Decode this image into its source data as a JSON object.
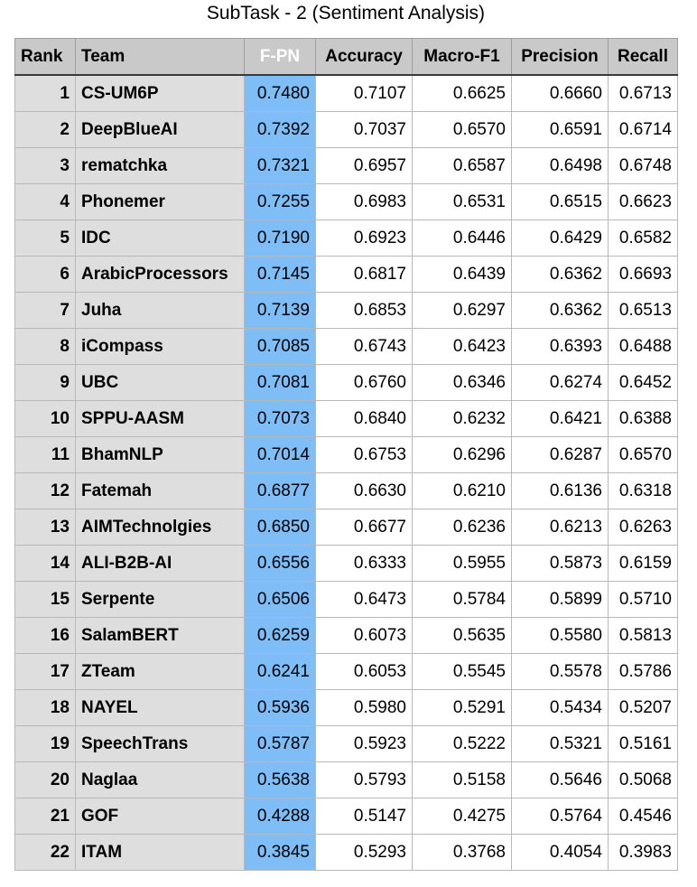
{
  "title": "SubTask - 2 (Sentiment Analysis)",
  "columns": [
    "Rank",
    "Team",
    "F-PN",
    "Accuracy",
    "Macro-F1",
    "Precision",
    "Recall"
  ],
  "colors": {
    "header_bg": "#c9c9c9",
    "label_bg": "#dedede",
    "highlight": "#7ebdf6"
  },
  "rows": [
    [
      "1",
      "CS-UM6P",
      "0.7480",
      "0.7107",
      "0.6625",
      "0.6660",
      "0.6713"
    ],
    [
      "2",
      "DeepBlueAI",
      "0.7392",
      "0.7037",
      "0.6570",
      "0.6591",
      "0.6714"
    ],
    [
      "3",
      "rematchka",
      "0.7321",
      "0.6957",
      "0.6587",
      "0.6498",
      "0.6748"
    ],
    [
      "4",
      "Phonemer",
      "0.7255",
      "0.6983",
      "0.6531",
      "0.6515",
      "0.6623"
    ],
    [
      "5",
      "IDC",
      "0.7190",
      "0.6923",
      "0.6446",
      "0.6429",
      "0.6582"
    ],
    [
      "6",
      "ArabicProcessors",
      "0.7145",
      "0.6817",
      "0.6439",
      "0.6362",
      "0.6693"
    ],
    [
      "7",
      "Juha",
      "0.7139",
      "0.6853",
      "0.6297",
      "0.6362",
      "0.6513"
    ],
    [
      "8",
      "iCompass",
      "0.7085",
      "0.6743",
      "0.6423",
      "0.6393",
      "0.6488"
    ],
    [
      "9",
      "UBC",
      "0.7081",
      "0.6760",
      "0.6346",
      "0.6274",
      "0.6452"
    ],
    [
      "10",
      "SPPU-AASM",
      "0.7073",
      "0.6840",
      "0.6232",
      "0.6421",
      "0.6388"
    ],
    [
      "11",
      "BhamNLP",
      "0.7014",
      "0.6753",
      "0.6296",
      "0.6287",
      "0.6570"
    ],
    [
      "12",
      "Fatemah",
      "0.6877",
      "0.6630",
      "0.6210",
      "0.6136",
      "0.6318"
    ],
    [
      "13",
      "AIMTechnolgies",
      "0.6850",
      "0.6677",
      "0.6236",
      "0.6213",
      "0.6263"
    ],
    [
      "14",
      "ALI-B2B-AI",
      "0.6556",
      "0.6333",
      "0.5955",
      "0.5873",
      "0.6159"
    ],
    [
      "15",
      "Serpente",
      "0.6506",
      "0.6473",
      "0.5784",
      "0.5899",
      "0.5710"
    ],
    [
      "16",
      "SalamBERT",
      "0.6259",
      "0.6073",
      "0.5635",
      "0.5580",
      "0.5813"
    ],
    [
      "17",
      "ZTeam",
      "0.6241",
      "0.6053",
      "0.5545",
      "0.5578",
      "0.5786"
    ],
    [
      "18",
      "NAYEL",
      "0.5936",
      "0.5980",
      "0.5291",
      "0.5434",
      "0.5207"
    ],
    [
      "19",
      "SpeechTrans",
      "0.5787",
      "0.5923",
      "0.5222",
      "0.5321",
      "0.5161"
    ],
    [
      "20",
      "Naglaa",
      "0.5638",
      "0.5793",
      "0.5158",
      "0.5646",
      "0.5068"
    ],
    [
      "21",
      "GOF",
      "0.4288",
      "0.5147",
      "0.4275",
      "0.5764",
      "0.4546"
    ],
    [
      "22",
      "ITAM",
      "0.3845",
      "0.5293",
      "0.3768",
      "0.4054",
      "0.3983"
    ]
  ]
}
